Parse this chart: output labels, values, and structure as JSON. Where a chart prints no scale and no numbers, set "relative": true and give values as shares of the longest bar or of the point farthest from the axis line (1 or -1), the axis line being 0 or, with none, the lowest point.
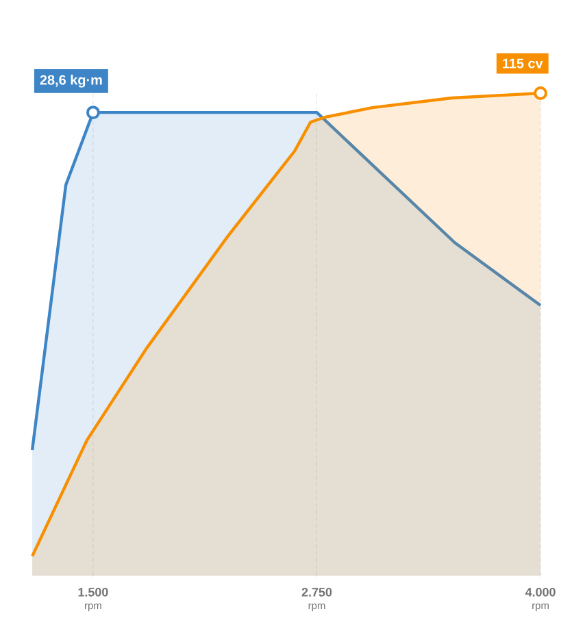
{
  "chart_data": {
    "type": "area",
    "relative": true,
    "grid": "x",
    "xlim": [
      1160,
      4000
    ],
    "xlabel": "rpm",
    "xticks": [
      {
        "value": 1500,
        "label": "1.500"
      },
      {
        "value": 2750,
        "label": "2.750"
      },
      {
        "value": 4000,
        "label": "4.000"
      }
    ],
    "series": [
      {
        "color": "#3d85c6",
        "x": [
          1160,
          1348,
          1500,
          2750,
          3521,
          4000
        ],
        "values": [
          0.26,
          0.81,
          0.96,
          0.96,
          0.69,
          0.56
        ]
      },
      {
        "color": "#f78f00",
        "x": [
          1160,
          1465,
          1797,
          2246,
          2626,
          2715,
          2794,
          3060,
          3504,
          4000
        ],
        "values": [
          0.04,
          0.28,
          0.47,
          0.7,
          0.88,
          0.94,
          0.95,
          0.97,
          0.99,
          1
        ]
      }
    ],
    "annotations": [
      {
        "text": "28,6 kg·m",
        "x": 1500,
        "y": 0.96
      },
      {
        "text": "115 cv",
        "x": 4000,
        "y": 1
      }
    ]
  }
}
